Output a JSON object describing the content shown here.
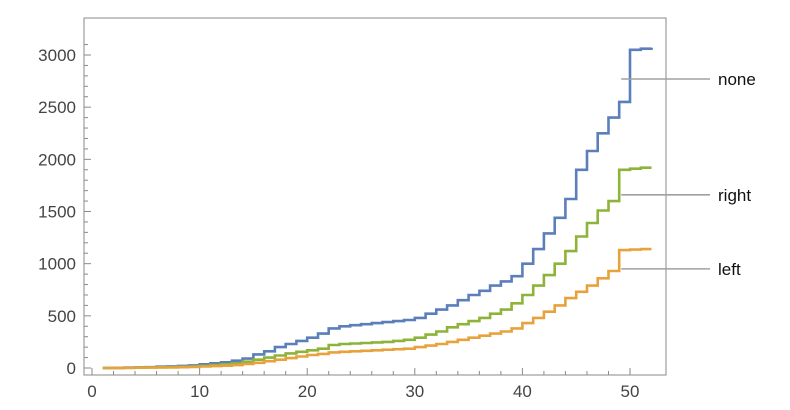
{
  "chart_data": {
    "type": "line",
    "interpolation": "step",
    "title": "",
    "xlabel": "",
    "ylabel": "",
    "xlim": [
      0,
      52
    ],
    "ylim": [
      0,
      3200
    ],
    "xticks": [
      0,
      10,
      20,
      30,
      40,
      50
    ],
    "yticks": [
      0,
      500,
      1000,
      1500,
      2000,
      2500,
      3000
    ],
    "grid": false,
    "legend": "right, callout labels",
    "series": [
      {
        "name": "none",
        "color": "#5b7fbb",
        "x": [
          1,
          2,
          3,
          4,
          5,
          6,
          7,
          8,
          9,
          10,
          11,
          12,
          13,
          14,
          15,
          16,
          17,
          18,
          19,
          20,
          21,
          22,
          23,
          24,
          25,
          26,
          27,
          28,
          29,
          30,
          31,
          32,
          33,
          34,
          35,
          36,
          37,
          38,
          39,
          40,
          41,
          42,
          43,
          44,
          45,
          46,
          47,
          48,
          49,
          50,
          51,
          52
        ],
        "values": [
          0,
          2,
          4,
          6,
          8,
          12,
          15,
          20,
          25,
          35,
          45,
          55,
          70,
          90,
          130,
          160,
          200,
          230,
          260,
          290,
          330,
          380,
          400,
          410,
          420,
          430,
          440,
          450,
          460,
          480,
          520,
          560,
          600,
          650,
          700,
          740,
          790,
          830,
          880,
          1000,
          1140,
          1290,
          1440,
          1620,
          1900,
          2080,
          2250,
          2400,
          2550,
          3050,
          3060,
          3070
        ]
      },
      {
        "name": "right",
        "color": "#8db33a",
        "x": [
          1,
          2,
          3,
          4,
          5,
          6,
          7,
          8,
          9,
          10,
          11,
          12,
          13,
          14,
          15,
          16,
          17,
          18,
          19,
          20,
          21,
          22,
          23,
          24,
          25,
          26,
          27,
          28,
          29,
          30,
          31,
          32,
          33,
          34,
          35,
          36,
          37,
          38,
          39,
          40,
          41,
          42,
          43,
          44,
          45,
          46,
          47,
          48,
          49,
          50,
          51,
          52
        ],
        "values": [
          0,
          1,
          2,
          4,
          5,
          7,
          9,
          12,
          15,
          20,
          28,
          35,
          45,
          60,
          80,
          100,
          120,
          140,
          155,
          170,
          185,
          220,
          230,
          235,
          240,
          245,
          250,
          260,
          270,
          290,
          320,
          350,
          390,
          420,
          450,
          480,
          520,
          560,
          620,
          700,
          790,
          890,
          1000,
          1120,
          1260,
          1390,
          1510,
          1600,
          1900,
          1910,
          1920,
          1920
        ]
      },
      {
        "name": "left",
        "color": "#e8a23c",
        "x": [
          1,
          2,
          3,
          4,
          5,
          6,
          7,
          8,
          9,
          10,
          11,
          12,
          13,
          14,
          15,
          16,
          17,
          18,
          19,
          20,
          21,
          22,
          23,
          24,
          25,
          26,
          27,
          28,
          29,
          30,
          31,
          32,
          33,
          34,
          35,
          36,
          37,
          38,
          39,
          40,
          41,
          42,
          43,
          44,
          45,
          46,
          47,
          48,
          49,
          50,
          51,
          52
        ],
        "values": [
          0,
          1,
          2,
          3,
          4,
          5,
          6,
          8,
          10,
          14,
          18,
          22,
          28,
          38,
          50,
          65,
          80,
          95,
          110,
          125,
          135,
          150,
          155,
          160,
          165,
          170,
          175,
          180,
          185,
          200,
          215,
          230,
          250,
          270,
          290,
          310,
          330,
          350,
          380,
          430,
          480,
          540,
          600,
          670,
          730,
          790,
          860,
          930,
          1130,
          1135,
          1140,
          1140
        ]
      }
    ]
  }
}
